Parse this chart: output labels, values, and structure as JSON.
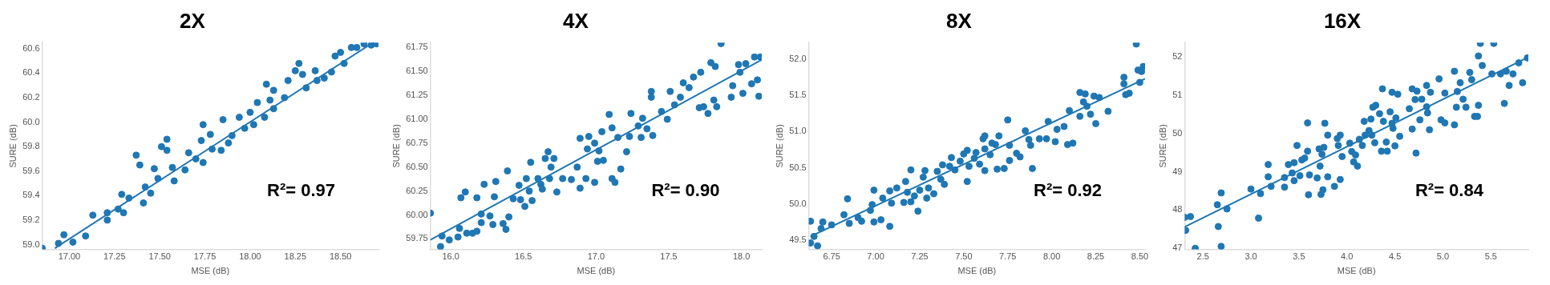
{
  "chart_data": [
    {
      "type": "scatter",
      "title": "2X",
      "xlabel": "MSE (dB)",
      "ylabel": "SURE (dB)",
      "annotations": [
        "R²= 0.97"
      ],
      "legend": false,
      "xlim": [
        16.85,
        18.71
      ],
      "ylim": [
        58.96,
        60.65
      ],
      "xticks": [
        {
          "value": 17,
          "label": "17.00"
        },
        {
          "value": 17.25,
          "label": "17.25"
        },
        {
          "value": 17.5,
          "label": "17.50"
        },
        {
          "value": 17.75,
          "label": "17.75"
        },
        {
          "value": 18,
          "label": "18.00"
        },
        {
          "value": 18.25,
          "label": "18.25"
        },
        {
          "value": 18.5,
          "label": "18.50"
        }
      ],
      "yticks": [
        {
          "value": 59,
          "label": "59.0"
        },
        {
          "value": 59.2,
          "label": "59.2"
        },
        {
          "value": 59.4,
          "label": "59.4"
        },
        {
          "value": 59.6,
          "label": "59.6"
        },
        {
          "value": 59.8,
          "label": "59.8"
        },
        {
          "value": 60,
          "label": "60.0"
        },
        {
          "value": 60.2,
          "label": "60.2"
        },
        {
          "value": 60.4,
          "label": "60.4"
        },
        {
          "value": 60.6,
          "label": "60.6"
        }
      ],
      "series": [
        {
          "marker": "circle",
          "color": "#1f77b4",
          "x": [
            16.85,
            16.94,
            16.97,
            17.02,
            17.09,
            17.13,
            17.21,
            17.21,
            17.27,
            17.29,
            17.3,
            17.33,
            17.37,
            17.39,
            17.41,
            17.42,
            17.45,
            17.47,
            17.49,
            17.51,
            17.54,
            17.54,
            17.57,
            17.58,
            17.64,
            17.66,
            17.7,
            17.73,
            17.74,
            17.74,
            17.78,
            17.79,
            17.85,
            17.84,
            17.88,
            17.9,
            17.94,
            17.97,
            18,
            18.02,
            18.04,
            18.08,
            18.09,
            18.11,
            18.13,
            18.13,
            18.19,
            18.21,
            18.25,
            18.27,
            18.29,
            18.31,
            18.36,
            18.37,
            18.41,
            18.45,
            18.47,
            18.5,
            18.52,
            18.56,
            18.59,
            18.63,
            18.67,
            18.7
          ],
          "values": [
            58.97,
            59.01,
            59.08,
            59.02,
            59.07,
            59.24,
            59.26,
            59.2,
            59.29,
            59.41,
            59.26,
            59.38,
            59.73,
            59.65,
            59.34,
            59.47,
            59.42,
            59.62,
            59.54,
            59.8,
            59.77,
            59.86,
            59.63,
            59.52,
            59.61,
            59.75,
            59.7,
            59.85,
            59.98,
            59.67,
            59.9,
            59.78,
            60.02,
            59.77,
            59.83,
            59.89,
            60.04,
            59.95,
            60.08,
            59.98,
            60.16,
            60.04,
            60.31,
            60.18,
            60.26,
            60.11,
            60.2,
            60.34,
            60.42,
            60.48,
            60.39,
            60.28,
            60.42,
            60.34,
            60.36,
            60.41,
            60.54,
            60.57,
            60.48,
            60.61,
            60.61,
            60.64,
            60.63,
            60.64
          ]
        },
        {
          "type": "line",
          "marker": "none",
          "color": "#1f77b4",
          "x": [
            16.92,
            18.68
          ],
          "values": [
            58.97,
            60.65
          ]
        }
      ]
    },
    {
      "type": "scatter",
      "title": "4X",
      "xlabel": "MSE (dB)",
      "ylabel": "SURE (dB)",
      "annotations": [
        "R²= 0.90"
      ],
      "legend": false,
      "xlim": [
        15.86,
        18.14
      ],
      "ylim": [
        59.64,
        61.8
      ],
      "xticks": [
        {
          "value": 16,
          "label": "16.0"
        },
        {
          "value": 16.5,
          "label": "16.5"
        },
        {
          "value": 17,
          "label": "17.0"
        },
        {
          "value": 17.5,
          "label": "17.5"
        },
        {
          "value": 18,
          "label": "18.0"
        }
      ],
      "yticks": [
        {
          "value": 59.75,
          "label": "59.75"
        },
        {
          "value": 60,
          "label": "60.00"
        },
        {
          "value": 60.25,
          "label": "60.25"
        },
        {
          "value": 60.5,
          "label": "60.50"
        },
        {
          "value": 60.75,
          "label": "60.75"
        },
        {
          "value": 61,
          "label": "61.00"
        },
        {
          "value": 61.25,
          "label": "61.25"
        },
        {
          "value": 61.5,
          "label": "61.50"
        },
        {
          "value": 61.75,
          "label": "61.75"
        }
      ],
      "series": [
        {
          "marker": "circle",
          "color": "#1f77b4",
          "x": [
            15.86,
            15.93,
            15.94,
            15.99,
            16.05,
            16.06,
            16.07,
            16.1,
            16.11,
            16.15,
            16.18,
            16.18,
            16.21,
            16.21,
            16.23,
            16.27,
            16.29,
            16.3,
            16.31,
            16.36,
            16.38,
            16.39,
            16.4,
            16.43,
            16.47,
            16.48,
            16.51,
            16.52,
            16.54,
            16.55,
            16.56,
            16.6,
            16.62,
            16.63,
            16.65,
            16.67,
            16.68,
            16.69,
            16.71,
            16.73,
            16.77,
            16.83,
            16.87,
            16.89,
            16.89,
            16.93,
            16.94,
            16.95,
            16.99,
            16.99,
            17.01,
            17.02,
            17.04,
            17.05,
            17.09,
            17.11,
            17.11,
            17.13,
            17.15,
            17.17,
            17.21,
            17.23,
            17.24,
            17.29,
            17.31,
            17.32,
            17.35,
            17.38,
            17.38,
            17.39,
            17.45,
            17.49,
            17.51,
            17.54,
            17.58,
            17.6,
            17.64,
            17.67,
            17.71,
            17.72,
            17.74,
            17.77,
            17.79,
            17.81,
            17.82,
            17.83,
            17.86,
            17.93,
            17.94,
            17.98,
            17.99,
            18.01,
            18.03,
            18.07,
            18.09,
            18.11,
            18.12,
            18.13
          ],
          "values": [
            60.02,
            59.67,
            59.78,
            59.74,
            59.77,
            59.86,
            60.18,
            60.24,
            59.81,
            59.81,
            60.18,
            59.83,
            60.01,
            59.92,
            60.32,
            59.99,
            59.9,
            60.19,
            60.35,
            59.91,
            59.85,
            60.46,
            59.98,
            60.17,
            60.31,
            60.16,
            60.09,
            60.38,
            60.25,
            60.55,
            60.15,
            60.38,
            60.32,
            60.27,
            60.59,
            60.66,
            60.38,
            60.5,
            60.59,
            60.24,
            60.38,
            60.37,
            60.5,
            60.8,
            60.28,
            60.38,
            60.69,
            60.82,
            60.34,
            60.75,
            60.56,
            60.67,
            60.87,
            60.57,
            61.05,
            60.38,
            60.91,
            60.34,
            60.81,
            60.48,
            60.66,
            60.82,
            61.06,
            60.93,
            60.81,
            61.01,
            60.9,
            61.23,
            61.29,
            60.83,
            61.08,
            61,
            61.29,
            61.15,
            61.23,
            61.38,
            61.33,
            61.44,
            61.12,
            61.49,
            61.13,
            61.06,
            61.59,
            61.2,
            61.55,
            61.13,
            61.79,
            61.23,
            61.35,
            61.57,
            61.49,
            61.27,
            61.58,
            61.37,
            61.65,
            61.41,
            61.24,
            61.65
          ]
        },
        {
          "type": "line",
          "marker": "none",
          "color": "#1f77b4",
          "x": [
            15.86,
            18.14
          ],
          "values": [
            59.74,
            61.62
          ]
        }
      ]
    },
    {
      "type": "scatter",
      "title": "8X",
      "xlabel": "MSE (dB)",
      "ylabel": "SURE (dB)",
      "annotations": [
        "R²= 0.92"
      ],
      "legend": false,
      "xlim": [
        6.62,
        8.53
      ],
      "ylim": [
        49.37,
        52.23
      ],
      "xticks": [
        {
          "value": 6.75,
          "label": "6.75"
        },
        {
          "value": 7,
          "label": "7.00"
        },
        {
          "value": 7.25,
          "label": "7.25"
        },
        {
          "value": 7.5,
          "label": "7.50"
        },
        {
          "value": 7.75,
          "label": "7.75"
        },
        {
          "value": 8,
          "label": "8.00"
        },
        {
          "value": 8.25,
          "label": "8.25"
        },
        {
          "value": 8.5,
          "label": "8.50"
        }
      ],
      "yticks": [
        {
          "value": 49.5,
          "label": "49.5"
        },
        {
          "value": 50,
          "label": "50.0"
        },
        {
          "value": 50.5,
          "label": "50.5"
        },
        {
          "value": 51,
          "label": "51.0"
        },
        {
          "value": 51.5,
          "label": "51.5"
        },
        {
          "value": 52,
          "label": "52.0"
        }
      ],
      "series": [
        {
          "marker": "circle",
          "color": "#1f77b4",
          "x": [
            6.63,
            6.63,
            6.65,
            6.67,
            6.69,
            6.7,
            6.75,
            6.82,
            6.84,
            6.85,
            6.9,
            6.92,
            6.97,
            6.98,
            6.99,
            6.99,
            7.03,
            7.04,
            7.08,
            7.08,
            7.09,
            7.12,
            7.16,
            7.17,
            7.18,
            7.2,
            7.2,
            7.22,
            7.24,
            7.25,
            7.27,
            7.28,
            7.29,
            7.3,
            7.33,
            7.35,
            7.37,
            7.38,
            7.39,
            7.42,
            7.43,
            7.45,
            7.48,
            7.5,
            7.52,
            7.52,
            7.53,
            7.56,
            7.57,
            7.59,
            7.61,
            7.62,
            7.62,
            7.62,
            7.65,
            7.66,
            7.68,
            7.69,
            7.7,
            7.73,
            7.75,
            7.76,
            7.76,
            7.8,
            7.82,
            7.85,
            7.87,
            7.88,
            7.89,
            7.93,
            7.97,
            7.98,
            8.02,
            8.03,
            8.07,
            8.09,
            8.1,
            8.12,
            8.16,
            8.16,
            8.18,
            8.19,
            8.2,
            8.22,
            8.24,
            8.25,
            8.27,
            8.32,
            8.41,
            8.41,
            8.42,
            8.44,
            8.48,
            8.49,
            8.5,
            8.51,
            8.52
          ],
          "values": [
            49.76,
            49.46,
            49.55,
            49.42,
            49.66,
            49.75,
            49.71,
            49.85,
            50.07,
            49.73,
            49.81,
            49.76,
            49.91,
            49.99,
            49.75,
            50.19,
            49.78,
            50.08,
            49.69,
            50.18,
            50.01,
            50.22,
            50.02,
            50.31,
            50.16,
            50.47,
            50.03,
            50.11,
            49.9,
            50.19,
            50.37,
            50.46,
            50.08,
            50.22,
            50.14,
            50.45,
            50.34,
            50.54,
            50.27,
            50.52,
            50.64,
            50.47,
            50.59,
            50.69,
            50.31,
            50.74,
            50.52,
            50.63,
            50.71,
            50.55,
            50.9,
            50.94,
            50.46,
            50.76,
            50.68,
            50.84,
            50.82,
            50.48,
            50.94,
            50.49,
            51.16,
            50.81,
            50.6,
            50.7,
            50.65,
            51.01,
            50.89,
            50.81,
            50.49,
            50.9,
            50.9,
            51.14,
            50.86,
            51.03,
            51.07,
            50.82,
            51.29,
            50.84,
            51.21,
            51.54,
            51.41,
            51.52,
            51.35,
            51.24,
            51.49,
            51.11,
            51.47,
            51.28,
            51.75,
            51.66,
            51.51,
            51.53,
            52.21,
            51.85,
            51.68,
            51.83,
            51.9
          ]
        },
        {
          "type": "line",
          "marker": "none",
          "color": "#1f77b4",
          "x": [
            6.63,
            8.53
          ],
          "values": [
            49.55,
            51.73
          ]
        }
      ]
    },
    {
      "type": "scatter",
      "title": "16X",
      "xlabel": "MSE (dB)",
      "ylabel": "SURE (dB)",
      "annotations": [
        "R²= 0.84"
      ],
      "legend": false,
      "xlim": [
        2.31,
        5.89
      ],
      "ylim": [
        46.97,
        52.38
      ],
      "xticks": [
        {
          "value": 2.5,
          "label": "2.5"
        },
        {
          "value": 3,
          "label": "3.0"
        },
        {
          "value": 3.5,
          "label": "3.5"
        },
        {
          "value": 4,
          "label": "4.0"
        },
        {
          "value": 4.5,
          "label": "4.5"
        },
        {
          "value": 5,
          "label": "5.0"
        },
        {
          "value": 5.5,
          "label": "5.5"
        }
      ],
      "yticks": [
        47,
        48,
        49,
        50,
        51,
        52
      ],
      "series": [
        {
          "marker": "circle",
          "color": "#1f77b4",
          "x": [
            2.31,
            2.32,
            2.37,
            2.42,
            2.65,
            2.66,
            2.69,
            2.69,
            2.75,
            3,
            3.08,
            3.1,
            3.18,
            3.18,
            3.21,
            3.35,
            3.35,
            3.39,
            3.43,
            3.45,
            3.45,
            3.48,
            3.51,
            3.53,
            3.56,
            3.59,
            3.59,
            3.6,
            3.61,
            3.69,
            3.71,
            3.72,
            3.73,
            3.74,
            3.75,
            3.76,
            3.77,
            3.8,
            3.8,
            3.87,
            3.9,
            3.91,
            3.93,
            3.95,
            3.93,
            4.03,
            4.05,
            4.07,
            4.09,
            4.11,
            4.13,
            4.16,
            4.18,
            4.19,
            4.23,
            4.25,
            4.26,
            4.27,
            4.29,
            4.3,
            4.34,
            4.36,
            4.37,
            4.38,
            4.41,
            4.42,
            4.45,
            4.47,
            4.47,
            4.48,
            4.5,
            4.51,
            4.53,
            4.55,
            4.65,
            4.68,
            4.68,
            4.71,
            4.72,
            4.73,
            4.76,
            4.78,
            4.83,
            4.83,
            4.84,
            4.86,
            4.87,
            4.96,
            4.98,
            5.02,
            5.02,
            5.12,
            5.12,
            5.14,
            5.15,
            5.18,
            5.21,
            5.24,
            5.28,
            5.3,
            5.33,
            5.36,
            5.37,
            5.37,
            5.39,
            5.41,
            5.51,
            5.53,
            5.6,
            5.64,
            5.66,
            5.69,
            5.73,
            5.79,
            5.83,
            5.88
          ],
          "values": [
            47.81,
            47.47,
            47.83,
            47.0,
            48.14,
            47.57,
            48.45,
            47.05,
            48.03,
            48.55,
            47.79,
            48.43,
            48.87,
            49.19,
            48.62,
            48.85,
            48.6,
            49.19,
            48.97,
            49.24,
            48.77,
            49.69,
            48.9,
            49.31,
            49.36,
            50.28,
            49.54,
            48.4,
            48.92,
            48.84,
            49.6,
            49.15,
            48.41,
            49.46,
            48.53,
            49.64,
            50.27,
            49.96,
            48.87,
            48.62,
            49.87,
            49.69,
            49.96,
            49.4,
            48.8,
            49.75,
            49.53,
            49.26,
            49.44,
            49.15,
            49.85,
            49.69,
            50.32,
            49.96,
            50.08,
            50.38,
            49.96,
            50.69,
            49.76,
            50.74,
            50.52,
            49.54,
            51.17,
            50.32,
            49.78,
            49.54,
            50.57,
            50.27,
            51.08,
            50.14,
            49.68,
            50.41,
            51.03,
            49.93,
            50.65,
            50.12,
            51.17,
            50.89,
            49.49,
            51.11,
            50.36,
            50.9,
            51.26,
            50.7,
            50.54,
            50.1,
            51.08,
            51.43,
            50.36,
            51.06,
            50.28,
            51.63,
            50.23,
            50.69,
            51.1,
            51.33,
            50.9,
            50.69,
            51.6,
            51.41,
            50.45,
            50.45,
            50.74,
            52.03,
            52.36,
            51.78,
            51.56,
            52.36,
            51.56,
            50.79,
            51.63,
            51.26,
            51.56,
            51.85,
            51.33,
            51.98
          ]
        },
        {
          "type": "line",
          "marker": "none",
          "color": "#1f77b4",
          "x": [
            2.31,
            5.89
          ],
          "values": [
            47.56,
            52.0
          ]
        }
      ]
    }
  ]
}
